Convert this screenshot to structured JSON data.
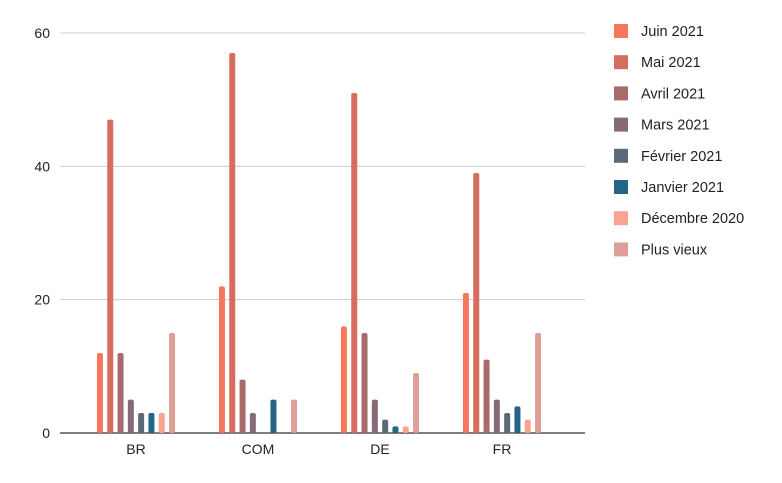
{
  "chart_data": {
    "type": "bar",
    "title": "",
    "xlabel": "",
    "ylabel": "",
    "ylim": [
      0,
      60
    ],
    "yticks": [
      0,
      20,
      40,
      60
    ],
    "grid": true,
    "legend_position": "right",
    "categories": [
      "BR",
      "COM",
      "DE",
      "FR"
    ],
    "series": [
      {
        "name": "Juin 2021",
        "color": "#f4775e",
        "values": [
          12,
          22,
          16,
          21
        ]
      },
      {
        "name": "Mai 2021",
        "color": "#d66d5e",
        "values": [
          47,
          57,
          51,
          39
        ]
      },
      {
        "name": "Avril 2021",
        "color": "#a96a6b",
        "values": [
          12,
          8,
          15,
          11
        ]
      },
      {
        "name": "Mars 2021",
        "color": "#866b76",
        "values": [
          5,
          3,
          5,
          5
        ]
      },
      {
        "name": "Février 2021",
        "color": "#5a6a78",
        "values": [
          3,
          0,
          2,
          3
        ]
      },
      {
        "name": "Janvier 2021",
        "color": "#246585",
        "values": [
          3,
          5,
          1,
          4
        ]
      },
      {
        "name": "Décembre 2020",
        "color": "#f9a390",
        "values": [
          3,
          0,
          1,
          2
        ]
      },
      {
        "name": "Plus vieux",
        "color": "#de9f98",
        "values": [
          15,
          5,
          9,
          15
        ]
      }
    ]
  }
}
